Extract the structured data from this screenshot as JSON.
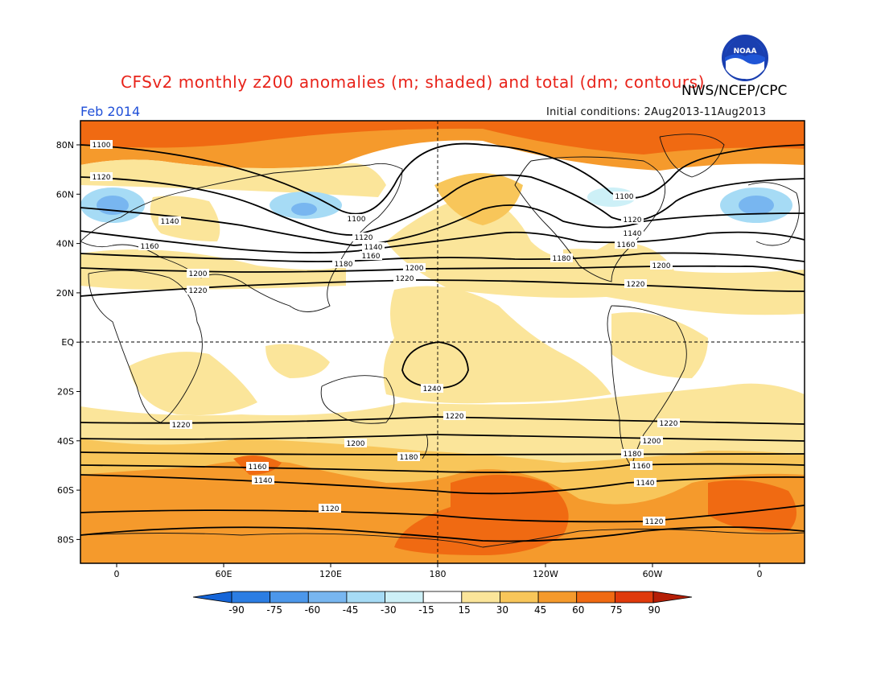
{
  "header": {
    "title": "CFSv2 monthly z200 anomalies (m; shaded) and total (dm; contours)",
    "agency": "NWS/NCEP/CPC",
    "month": "Feb 2014",
    "initial_conditions": "Initial conditions: 2Aug2013-11Aug2013",
    "logo_text": "NOAA"
  },
  "map": {
    "lat_labels": [
      "80N",
      "60N",
      "40N",
      "20N",
      "EQ",
      "20S",
      "40S",
      "60S",
      "80S"
    ],
    "lon_labels": [
      "0",
      "60E",
      "120E",
      "180",
      "120W",
      "60W",
      "0"
    ],
    "contour_labels": [
      "1100",
      "1120",
      "1140",
      "1160",
      "1180",
      "1200",
      "1220",
      "1240"
    ],
    "dashed_reference_lines": [
      "EQ",
      "180"
    ]
  },
  "colorbar": {
    "labels": [
      "-90",
      "-75",
      "-60",
      "-45",
      "-30",
      "-15",
      "15",
      "30",
      "45",
      "60",
      "75",
      "90"
    ],
    "colors": [
      "#1565d8",
      "#2b7de3",
      "#4c97ea",
      "#78b6f0",
      "#a6dbf5",
      "#cdf0f7",
      "#ffffff",
      "#fbe59a",
      "#f8c65a",
      "#f59a2c",
      "#f06a12",
      "#e03a0b",
      "#b51e06"
    ]
  }
}
